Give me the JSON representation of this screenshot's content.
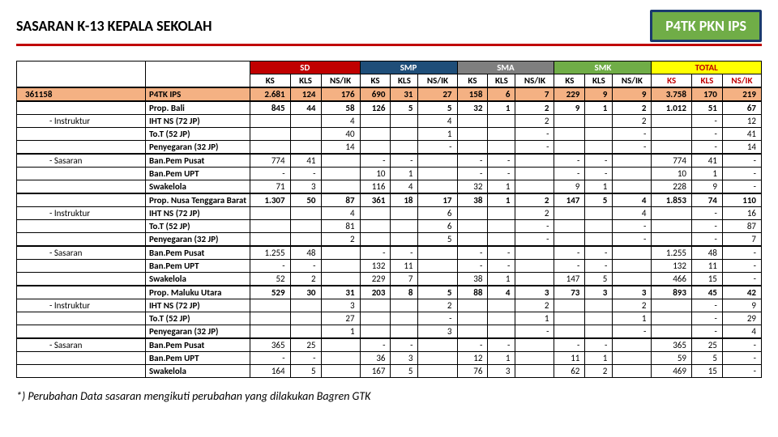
{
  "title": "SASARAN K-13 KEPALA SEKOLAH",
  "badge": "P4TK PKN IPS",
  "footnote": "*) Perubahan Data sasaran mengikuti perubahan yang dilakukan Bagren GTK",
  "colors": {
    "header_underline": "#c00000",
    "badge_bg": "#70ad47",
    "sd": "#c00000",
    "smp": "#1f4e79",
    "sma": "#7f7f7f",
    "smk": "#70ad47",
    "total_bg": "#ffff00",
    "total_text": "#c00000",
    "highlight_row": "#f4b183"
  },
  "groups": [
    "SD",
    "SMP",
    "SMA",
    "SMK",
    "TOTAL"
  ],
  "subcols": [
    "KS",
    "KLS",
    "NS/IK"
  ],
  "rows": [
    {
      "type": "main",
      "hl": true,
      "c1": "361158",
      "c2": "P4TK IPS",
      "v": [
        "2.681",
        "124",
        "176",
        "690",
        "31",
        "27",
        "158",
        "6",
        "7",
        "229",
        "9",
        "9",
        "3.758",
        "170",
        "219"
      ]
    },
    {
      "type": "prop",
      "c1": "",
      "c2": "Prop. Bali",
      "v": [
        "845",
        "44",
        "58",
        "126",
        "5",
        "5",
        "32",
        "1",
        "2",
        "9",
        "1",
        "2",
        "1.012",
        "51",
        "67"
      ]
    },
    {
      "type": "sub",
      "c1": "- Instruktur",
      "c2": "IHT NS (72 JP)",
      "v": [
        "",
        "",
        "4",
        "",
        "",
        "4",
        "",
        "",
        "2",
        "",
        "",
        "2",
        "",
        "-",
        "12"
      ]
    },
    {
      "type": "sub",
      "c1": "",
      "c2": "To.T (52 JP)",
      "v": [
        "",
        "",
        "40",
        "",
        "",
        "1",
        "",
        "",
        "-",
        "",
        "",
        "-",
        "",
        "-",
        "41"
      ]
    },
    {
      "type": "sub",
      "c1": "",
      "c2": "Penyegaran (32 JP)",
      "v": [
        "",
        "",
        "14",
        "",
        "",
        "-",
        "",
        "",
        "-",
        "",
        "",
        "-",
        "",
        "-",
        "14"
      ]
    },
    {
      "type": "sub",
      "tb": true,
      "c1": "- Sasaran",
      "c2": "Ban.Pem Pusat",
      "v": [
        "774",
        "41",
        "",
        "-",
        "-",
        "",
        "-",
        "-",
        "",
        "-",
        "-",
        "",
        "774",
        "41",
        "-"
      ]
    },
    {
      "type": "sub",
      "c1": "",
      "c2": "Ban.Pem UPT",
      "v": [
        "-",
        "-",
        "",
        "10",
        "1",
        "",
        "-",
        "-",
        "",
        "-",
        "-",
        "",
        "10",
        "1",
        "-"
      ]
    },
    {
      "type": "sub",
      "c1": "",
      "c2": "Swakelola",
      "v": [
        "71",
        "3",
        "",
        "116",
        "4",
        "",
        "32",
        "1",
        "",
        "9",
        "1",
        "",
        "228",
        "9",
        "-"
      ]
    },
    {
      "type": "prop",
      "c1": "",
      "c2": "Prop. Nusa Tenggara Barat",
      "v": [
        "1.307",
        "50",
        "87",
        "361",
        "18",
        "17",
        "38",
        "1",
        "2",
        "147",
        "5",
        "4",
        "1.853",
        "74",
        "110"
      ]
    },
    {
      "type": "sub",
      "c1": "- Instruktur",
      "c2": "IHT NS (72 JP)",
      "v": [
        "",
        "",
        "4",
        "",
        "",
        "6",
        "",
        "",
        "2",
        "",
        "",
        "4",
        "",
        "-",
        "16"
      ]
    },
    {
      "type": "sub",
      "c1": "",
      "c2": "To.T (52 JP)",
      "v": [
        "",
        "",
        "81",
        "",
        "",
        "6",
        "",
        "",
        "-",
        "",
        "",
        "-",
        "",
        "-",
        "87"
      ]
    },
    {
      "type": "sub",
      "c1": "",
      "c2": "Penyegaran (32 JP)",
      "v": [
        "",
        "",
        "2",
        "",
        "",
        "5",
        "",
        "",
        "-",
        "",
        "",
        "-",
        "",
        "-",
        "7"
      ]
    },
    {
      "type": "sub",
      "tb": true,
      "c1": "- Sasaran",
      "c2": "Ban.Pem Pusat",
      "v": [
        "1.255",
        "48",
        "",
        "-",
        "-",
        "",
        "-",
        "-",
        "",
        "-",
        "-",
        "",
        "1.255",
        "48",
        "-"
      ]
    },
    {
      "type": "sub",
      "c1": "",
      "c2": "Ban.Pem UPT",
      "v": [
        "-",
        "-",
        "",
        "132",
        "11",
        "",
        "-",
        "-",
        "",
        "-",
        "-",
        "",
        "132",
        "11",
        "-"
      ]
    },
    {
      "type": "sub",
      "c1": "",
      "c2": "Swakelola",
      "v": [
        "52",
        "2",
        "",
        "229",
        "7",
        "",
        "38",
        "1",
        "",
        "147",
        "5",
        "",
        "466",
        "15",
        "-"
      ]
    },
    {
      "type": "prop",
      "c1": "",
      "c2": "Prop. Maluku Utara",
      "v": [
        "529",
        "30",
        "31",
        "203",
        "8",
        "5",
        "88",
        "4",
        "3",
        "73",
        "3",
        "3",
        "893",
        "45",
        "42"
      ]
    },
    {
      "type": "sub",
      "c1": "- Instruktur",
      "c2": "IHT NS (72 JP)",
      "v": [
        "",
        "",
        "3",
        "",
        "",
        "2",
        "",
        "",
        "2",
        "",
        "",
        "2",
        "",
        "-",
        "9"
      ]
    },
    {
      "type": "sub",
      "c1": "",
      "c2": "To.T (52 JP)",
      "v": [
        "",
        "",
        "27",
        "",
        "",
        "-",
        "",
        "",
        "1",
        "",
        "",
        "1",
        "",
        "-",
        "29"
      ]
    },
    {
      "type": "sub",
      "c1": "",
      "c2": "Penyegaran (32 JP)",
      "v": [
        "",
        "",
        "1",
        "",
        "",
        "3",
        "",
        "",
        "-",
        "",
        "",
        "-",
        "",
        "-",
        "4"
      ]
    },
    {
      "type": "sub",
      "tb": true,
      "c1": "- Sasaran",
      "c2": "Ban.Pem Pusat",
      "v": [
        "365",
        "25",
        "",
        "-",
        "-",
        "",
        "-",
        "-",
        "",
        "-",
        "-",
        "",
        "365",
        "25",
        "-"
      ]
    },
    {
      "type": "sub",
      "c1": "",
      "c2": "Ban.Pem UPT",
      "v": [
        "-",
        "-",
        "",
        "36",
        "3",
        "",
        "12",
        "1",
        "",
        "11",
        "1",
        "",
        "59",
        "5",
        "-"
      ]
    },
    {
      "type": "sub",
      "c1": "",
      "c2": "Swakelola",
      "v": [
        "164",
        "5",
        "",
        "167",
        "5",
        "",
        "76",
        "3",
        "",
        "62",
        "2",
        "",
        "469",
        "15",
        "-"
      ]
    }
  ]
}
